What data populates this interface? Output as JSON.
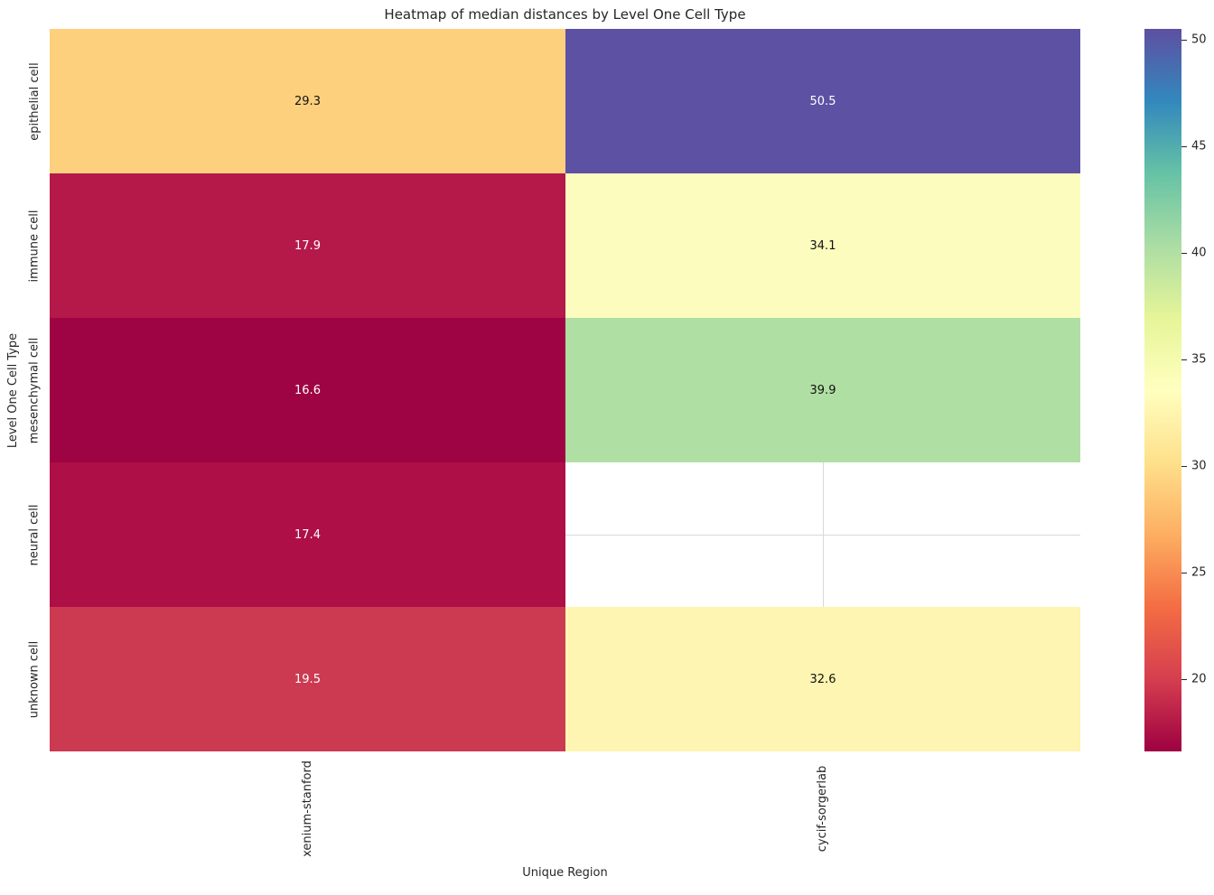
{
  "chart_data": {
    "type": "heatmap",
    "title": "Heatmap of median distances by Level One Cell Type",
    "xlabel": "Unique Region",
    "ylabel": "Level One Cell Type",
    "columns": [
      "xenium-stanford",
      "cycif-sorgerlab"
    ],
    "rows": [
      "epithelial cell",
      "immune cell",
      "mesenchymal cell",
      "neural cell",
      "unknown cell"
    ],
    "values": [
      [
        29.3,
        50.5
      ],
      [
        17.9,
        34.1
      ],
      [
        16.6,
        39.9
      ],
      [
        17.4,
        null
      ],
      [
        19.5,
        32.6
      ]
    ],
    "colormap": "Spectral",
    "vmin": 16.6,
    "vmax": 50.5,
    "colorbar_ticks": [
      20,
      25,
      30,
      35,
      40,
      45,
      50
    ],
    "legend_position": "right-colorbar",
    "grid": false,
    "cell_colors": [
      [
        "#fdd07e",
        "#5d51a4"
      ],
      [
        "#b5194a",
        "#fbfcbd"
      ],
      [
        "#9e0343",
        "#b0dfa4"
      ],
      [
        "#ad0f46",
        null
      ],
      [
        "#cb3a51",
        "#fdf5b1"
      ]
    ],
    "annotation_text_colors": [
      [
        "#111111",
        "#ffffff"
      ],
      [
        "#ffffff",
        "#111111"
      ],
      [
        "#ffffff",
        "#111111"
      ],
      [
        "#ffffff",
        null
      ],
      [
        "#ffffff",
        "#111111"
      ]
    ],
    "nan_gridline_color": "#d8d8d8"
  }
}
